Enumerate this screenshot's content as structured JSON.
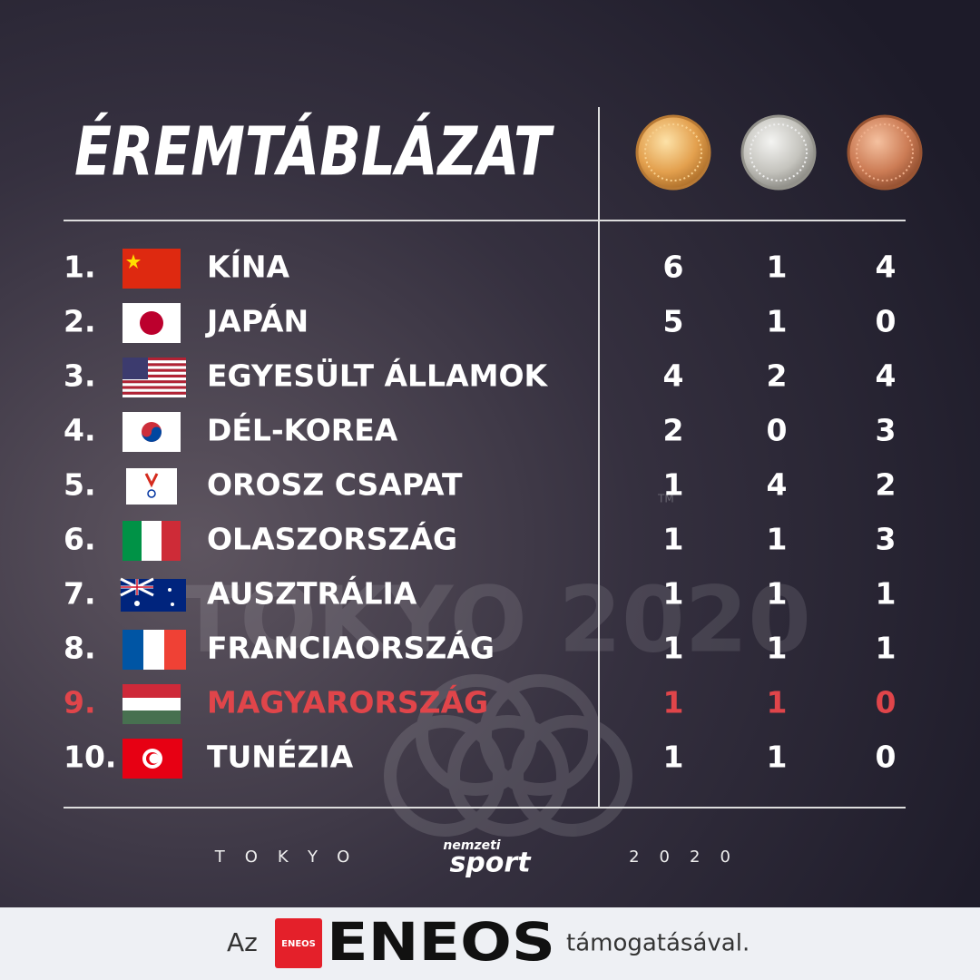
{
  "header": {
    "title": "ÉREMTÁBLÁZAT"
  },
  "watermark": {
    "text": "TOKYO 2020",
    "tm": "TM"
  },
  "table": {
    "highlight_color": "#e0454a",
    "text_color": "#ffffff",
    "rows": [
      {
        "rank": "1.",
        "country": "KÍNA",
        "gold": 6,
        "silver": 1,
        "bronze": 4,
        "highlight": false
      },
      {
        "rank": "2.",
        "country": "JAPÁN",
        "gold": 5,
        "silver": 1,
        "bronze": 0,
        "highlight": false
      },
      {
        "rank": "3.",
        "country": "EGYESÜLT ÁLLAMOK",
        "gold": 4,
        "silver": 2,
        "bronze": 4,
        "highlight": false
      },
      {
        "rank": "4.",
        "country": "DÉL-KOREA",
        "gold": 2,
        "silver": 0,
        "bronze": 3,
        "highlight": false
      },
      {
        "rank": "5.",
        "country": "OROSZ CSAPAT",
        "gold": 1,
        "silver": 4,
        "bronze": 2,
        "highlight": false
      },
      {
        "rank": "6.",
        "country": "OLASZORSZÁG",
        "gold": 1,
        "silver": 1,
        "bronze": 3,
        "highlight": false
      },
      {
        "rank": "7.",
        "country": "AUSZTRÁLIA",
        "gold": 1,
        "silver": 1,
        "bronze": 1,
        "highlight": false
      },
      {
        "rank": "8.",
        "country": "FRANCIAORSZÁG",
        "gold": 1,
        "silver": 1,
        "bronze": 1,
        "highlight": false
      },
      {
        "rank": "9.",
        "country": "MAGYARORSZÁG",
        "gold": 1,
        "silver": 1,
        "bronze": 0,
        "highlight": true
      },
      {
        "rank": "10.",
        "country": "TUNÉZIA",
        "gold": 1,
        "silver": 1,
        "bronze": 0,
        "highlight": false
      }
    ]
  },
  "footer": {
    "left": "TOKYO",
    "logo_top": "nemzeti",
    "logo_bottom": "sport",
    "right": "2020"
  },
  "sponsor": {
    "prefix": "Az",
    "badge": "ENEOS",
    "brand": "ENEOS",
    "suffix": "támogatásával."
  }
}
